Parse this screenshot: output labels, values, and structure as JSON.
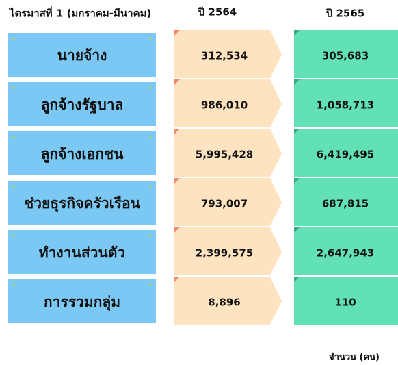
{
  "header": {
    "period": "ไตรมาสที่ 1 (มกราคม-มีนาคม)",
    "year1": "ปี 2564",
    "year2": "ปี 2565"
  },
  "table": {
    "rows": [
      [
        "นายจ้าง",
        "312,534",
        "305,683"
      ],
      [
        "ลูกจ้างรัฐบาล",
        "986,010",
        "1,058,713"
      ],
      [
        "ลูกจ้างเอกชน",
        "5,995,428",
        "6,419,495"
      ],
      [
        "ช่วยธุรกิจครัวเรือน",
        "793,007",
        "687,815"
      ],
      [
        "ทำงานส่วนตัว",
        "2,399,575",
        "2,647,943"
      ],
      [
        "การรวมกลุ่ม",
        "8,896",
        "110"
      ]
    ]
  },
  "footer": {
    "unit": "จำนวน (คน)"
  }
}
